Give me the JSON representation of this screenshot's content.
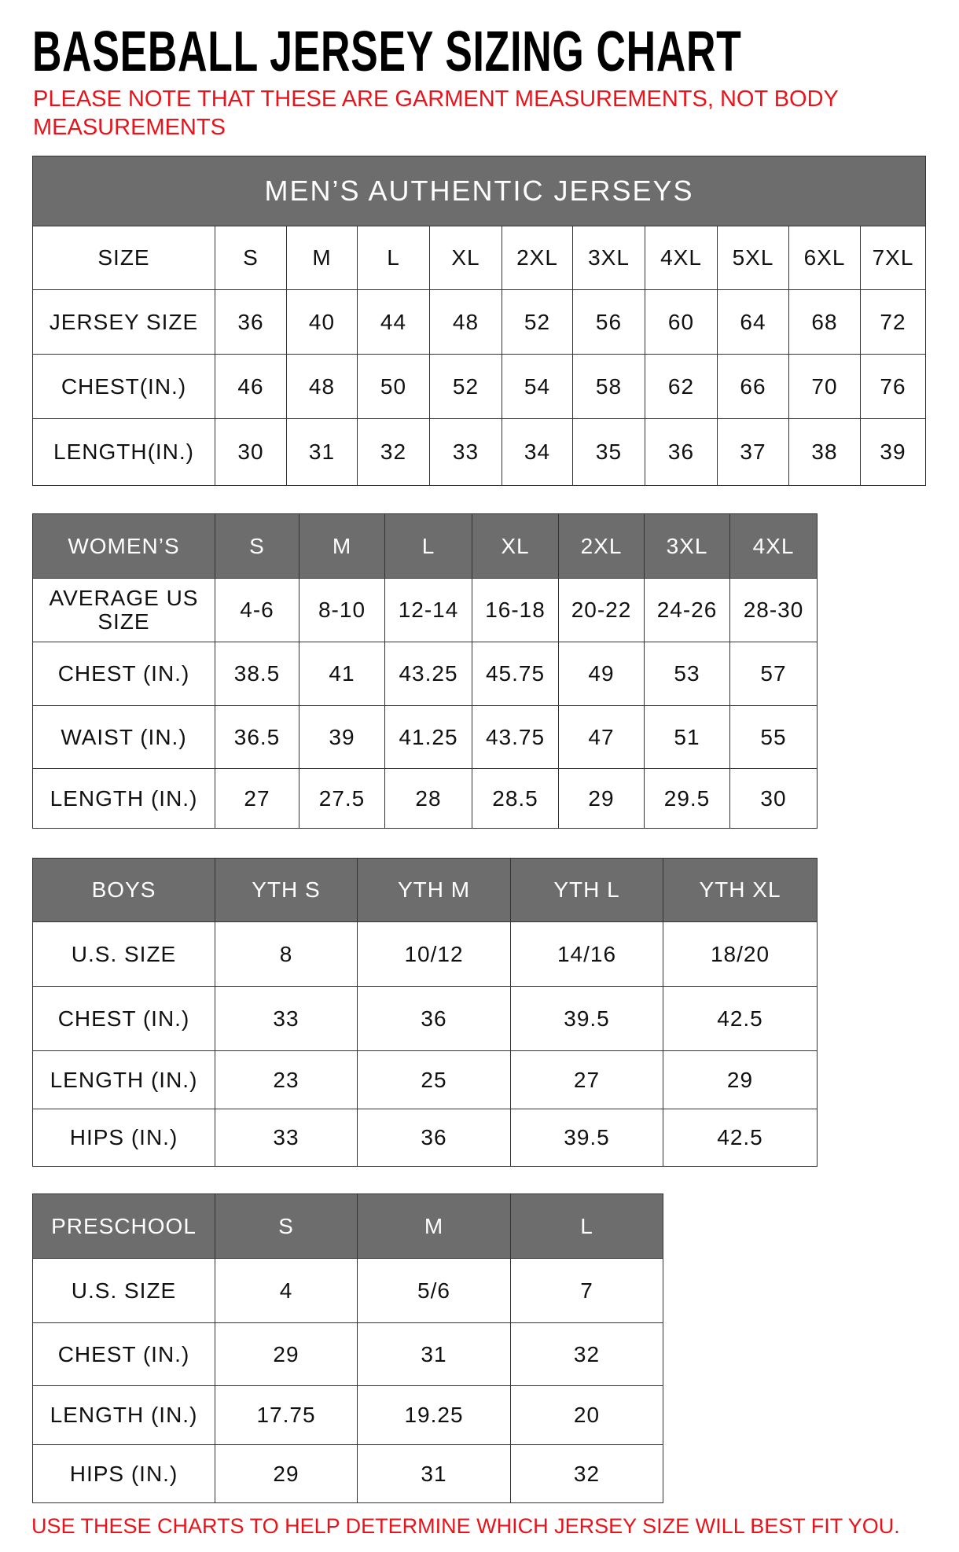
{
  "title": "BASEBALL JERSEY SIZING CHART",
  "note": "PLEASE NOTE THAT THESE ARE GARMENT MEASUREMENTS, NOT BODY MEASUREMENTS",
  "footer": "USE THESE CHARTS TO HELP DETERMINE WHICH JERSEY SIZE WILL BEST FIT YOU.",
  "colors": {
    "header_gray": "#6d6d6d",
    "note_red": "#e8141b"
  },
  "mens": {
    "title": "MEN’S AUTHENTIC JERSEYS",
    "rows": [
      [
        "SIZE",
        "S",
        "M",
        "L",
        "XL",
        "2XL",
        "3XL",
        "4XL",
        "5XL",
        "6XL",
        "7XL"
      ],
      [
        "JERSEY SIZE",
        "36",
        "40",
        "44",
        "48",
        "52",
        "56",
        "60",
        "64",
        "68",
        "72"
      ],
      [
        "CHEST(IN.)",
        "46",
        "48",
        "50",
        "52",
        "54",
        "58",
        "62",
        "66",
        "70",
        "76"
      ],
      [
        "LENGTH(IN.)",
        "30",
        "31",
        "32",
        "33",
        "34",
        "35",
        "36",
        "37",
        "38",
        "39"
      ]
    ]
  },
  "womens": {
    "rows": [
      [
        "WOMEN’S",
        "S",
        "M",
        "L",
        "XL",
        "2XL",
        "3XL",
        "4XL"
      ],
      [
        "AVERAGE US SIZE",
        "4-6",
        "8-10",
        "12-14",
        "16-18",
        "20-22",
        "24-26",
        "28-30"
      ],
      [
        "CHEST (IN.)",
        "38.5",
        "41",
        "43.25",
        "45.75",
        "49",
        "53",
        "57"
      ],
      [
        "WAIST (IN.)",
        "36.5",
        "39",
        "41.25",
        "43.75",
        "47",
        "51",
        "55"
      ],
      [
        "LENGTH (IN.)",
        "27",
        "27.5",
        "28",
        "28.5",
        "29",
        "29.5",
        "30"
      ]
    ]
  },
  "boys": {
    "rows": [
      [
        "BOYS",
        "YTH S",
        "YTH M",
        "YTH L",
        "YTH XL"
      ],
      [
        "U.S. SIZE",
        "8",
        "10/12",
        "14/16",
        "18/20"
      ],
      [
        "CHEST (IN.)",
        "33",
        "36",
        "39.5",
        "42.5"
      ],
      [
        "LENGTH (IN.)",
        "23",
        "25",
        "27",
        "29"
      ],
      [
        "HIPS (IN.)",
        "33",
        "36",
        "39.5",
        "42.5"
      ]
    ]
  },
  "preschool": {
    "rows": [
      [
        "PRESCHOOL",
        "S",
        "M",
        "L"
      ],
      [
        "U.S. SIZE",
        "4",
        "5/6",
        "7"
      ],
      [
        "CHEST (IN.)",
        "29",
        "31",
        "32"
      ],
      [
        "LENGTH (IN.)",
        "17.75",
        "19.25",
        "20"
      ],
      [
        "HIPS (IN.)",
        "29",
        "31",
        "32"
      ]
    ]
  }
}
